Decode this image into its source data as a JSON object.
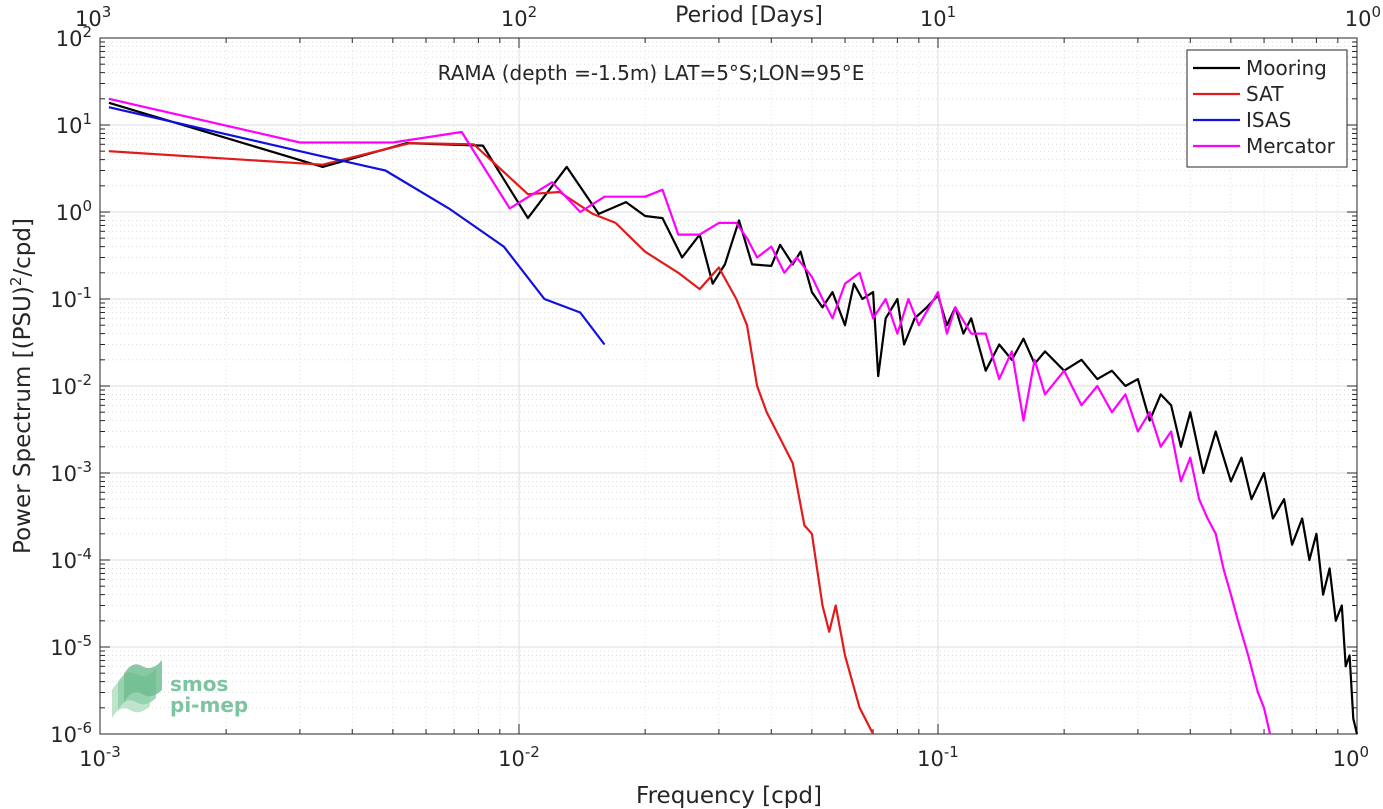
{
  "chart_data": {
    "type": "line",
    "title": "RAMA (depth =-1.5m) LAT=5°S;LON=95°E",
    "xlabel": "Frequency [cpd]",
    "ylabel": "Power Spectrum [(PSU)²/cpd]",
    "ylabel_base": "Power Spectrum [(PSU)",
    "ylabel_sup": "2",
    "ylabel_tail": "/cpd]",
    "top_xlabel": "Period [Days]",
    "x_scale": "log",
    "y_scale": "log",
    "xlim": [
      0.001,
      1
    ],
    "ylim": [
      1e-06,
      100
    ],
    "grid": true,
    "legend_position": "top-right",
    "x_ticks": [
      {
        "value": 0.001,
        "base": "10",
        "exp": "-3"
      },
      {
        "value": 0.01,
        "base": "10",
        "exp": "-2"
      },
      {
        "value": 0.1,
        "base": "10",
        "exp": "-1"
      },
      {
        "value": 1,
        "base": "10",
        "exp": "0"
      }
    ],
    "top_ticks": [
      {
        "value": 0.001,
        "base": "10",
        "exp": "3"
      },
      {
        "value": 0.01,
        "base": "10",
        "exp": "2"
      },
      {
        "value": 0.1,
        "base": "10",
        "exp": "1"
      },
      {
        "value": 1,
        "base": "10",
        "exp": "0"
      }
    ],
    "y_ticks": [
      {
        "value": 1e-06,
        "base": "10",
        "exp": "-6"
      },
      {
        "value": 1e-05,
        "base": "10",
        "exp": "-5"
      },
      {
        "value": 0.0001,
        "base": "10",
        "exp": "-4"
      },
      {
        "value": 0.001,
        "base": "10",
        "exp": "-3"
      },
      {
        "value": 0.01,
        "base": "10",
        "exp": "-2"
      },
      {
        "value": 0.1,
        "base": "10",
        "exp": "-1"
      },
      {
        "value": 1,
        "base": "10",
        "exp": "0"
      },
      {
        "value": 10,
        "base": "10",
        "exp": "1"
      },
      {
        "value": 100,
        "base": "10",
        "exp": "2"
      }
    ],
    "series": [
      {
        "name": "Mooring",
        "color": "#000000",
        "points": [
          [
            0.00105,
            18
          ],
          [
            0.0034,
            3.3
          ],
          [
            0.0054,
            6.2
          ],
          [
            0.0082,
            5.8
          ],
          [
            0.0105,
            0.85
          ],
          [
            0.013,
            3.3
          ],
          [
            0.0155,
            0.95
          ],
          [
            0.018,
            1.3
          ],
          [
            0.02,
            0.9
          ],
          [
            0.022,
            0.85
          ],
          [
            0.0245,
            0.3
          ],
          [
            0.027,
            0.55
          ],
          [
            0.029,
            0.15
          ],
          [
            0.031,
            0.25
          ],
          [
            0.0335,
            0.8
          ],
          [
            0.036,
            0.25
          ],
          [
            0.04,
            0.24
          ],
          [
            0.042,
            0.42
          ],
          [
            0.045,
            0.25
          ],
          [
            0.047,
            0.35
          ],
          [
            0.05,
            0.12
          ],
          [
            0.053,
            0.08
          ],
          [
            0.056,
            0.12
          ],
          [
            0.06,
            0.05
          ],
          [
            0.063,
            0.15
          ],
          [
            0.066,
            0.1
          ],
          [
            0.07,
            0.12
          ],
          [
            0.072,
            0.013
          ],
          [
            0.075,
            0.06
          ],
          [
            0.08,
            0.1
          ],
          [
            0.083,
            0.03
          ],
          [
            0.088,
            0.06
          ],
          [
            0.094,
            0.08
          ],
          [
            0.1,
            0.11
          ],
          [
            0.105,
            0.05
          ],
          [
            0.11,
            0.08
          ],
          [
            0.115,
            0.04
          ],
          [
            0.12,
            0.06
          ],
          [
            0.13,
            0.015
          ],
          [
            0.14,
            0.03
          ],
          [
            0.15,
            0.02
          ],
          [
            0.16,
            0.035
          ],
          [
            0.17,
            0.018
          ],
          [
            0.18,
            0.025
          ],
          [
            0.2,
            0.015
          ],
          [
            0.22,
            0.02
          ],
          [
            0.24,
            0.012
          ],
          [
            0.26,
            0.015
          ],
          [
            0.28,
            0.01
          ],
          [
            0.3,
            0.012
          ],
          [
            0.32,
            0.004
          ],
          [
            0.34,
            0.008
          ],
          [
            0.36,
            0.006
          ],
          [
            0.38,
            0.002
          ],
          [
            0.4,
            0.005
          ],
          [
            0.43,
            0.001
          ],
          [
            0.46,
            0.003
          ],
          [
            0.5,
            0.0008
          ],
          [
            0.53,
            0.0015
          ],
          [
            0.56,
            0.0005
          ],
          [
            0.6,
            0.001
          ],
          [
            0.63,
            0.0003
          ],
          [
            0.67,
            0.0005
          ],
          [
            0.7,
            0.00015
          ],
          [
            0.74,
            0.0003
          ],
          [
            0.77,
            0.0001
          ],
          [
            0.8,
            0.0002
          ],
          [
            0.83,
            4e-05
          ],
          [
            0.86,
            8e-05
          ],
          [
            0.89,
            2e-05
          ],
          [
            0.92,
            3e-05
          ],
          [
            0.94,
            6e-06
          ],
          [
            0.96,
            8e-06
          ],
          [
            0.98,
            1.5e-06
          ],
          [
            1.0,
            1e-06
          ]
        ]
      },
      {
        "name": "SAT",
        "color": "#e31a1c",
        "points": [
          [
            0.00105,
            5
          ],
          [
            0.0034,
            3.5
          ],
          [
            0.0055,
            6.2
          ],
          [
            0.0078,
            6
          ],
          [
            0.0105,
            1.6
          ],
          [
            0.0125,
            1.7
          ],
          [
            0.015,
            0.95
          ],
          [
            0.017,
            0.75
          ],
          [
            0.02,
            0.35
          ],
          [
            0.024,
            0.2
          ],
          [
            0.027,
            0.13
          ],
          [
            0.03,
            0.23
          ],
          [
            0.033,
            0.1
          ],
          [
            0.035,
            0.05
          ],
          [
            0.037,
            0.01
          ],
          [
            0.039,
            0.005
          ],
          [
            0.042,
            0.0025
          ],
          [
            0.045,
            0.0013
          ],
          [
            0.048,
            0.00025
          ],
          [
            0.05,
            0.0002
          ],
          [
            0.053,
            3e-05
          ],
          [
            0.055,
            1.5e-05
          ],
          [
            0.057,
            3e-05
          ],
          [
            0.06,
            8e-06
          ],
          [
            0.065,
            2e-06
          ],
          [
            0.07,
            1e-06
          ]
        ]
      },
      {
        "name": "ISAS",
        "color": "#1010e0",
        "points": [
          [
            0.00105,
            16
          ],
          [
            0.0033,
            4.5
          ],
          [
            0.0048,
            3
          ],
          [
            0.0068,
            1.1
          ],
          [
            0.0092,
            0.4
          ],
          [
            0.0115,
            0.1
          ],
          [
            0.014,
            0.07
          ],
          [
            0.016,
            0.03
          ]
        ]
      },
      {
        "name": "Mercator",
        "color": "#ff00ff",
        "points": [
          [
            0.00105,
            20
          ],
          [
            0.003,
            6.3
          ],
          [
            0.005,
            6.3
          ],
          [
            0.0073,
            8.3
          ],
          [
            0.0095,
            1.1
          ],
          [
            0.012,
            2.2
          ],
          [
            0.014,
            1.0
          ],
          [
            0.016,
            1.5
          ],
          [
            0.02,
            1.5
          ],
          [
            0.022,
            1.8
          ],
          [
            0.024,
            0.55
          ],
          [
            0.027,
            0.55
          ],
          [
            0.03,
            0.75
          ],
          [
            0.033,
            0.75
          ],
          [
            0.035,
            0.5
          ],
          [
            0.037,
            0.3
          ],
          [
            0.04,
            0.4
          ],
          [
            0.043,
            0.2
          ],
          [
            0.046,
            0.3
          ],
          [
            0.05,
            0.18
          ],
          [
            0.053,
            0.1
          ],
          [
            0.056,
            0.06
          ],
          [
            0.06,
            0.15
          ],
          [
            0.065,
            0.2
          ],
          [
            0.07,
            0.06
          ],
          [
            0.075,
            0.1
          ],
          [
            0.08,
            0.04
          ],
          [
            0.085,
            0.1
          ],
          [
            0.09,
            0.05
          ],
          [
            0.1,
            0.12
          ],
          [
            0.105,
            0.04
          ],
          [
            0.11,
            0.08
          ],
          [
            0.12,
            0.04
          ],
          [
            0.13,
            0.04
          ],
          [
            0.14,
            0.012
          ],
          [
            0.15,
            0.025
          ],
          [
            0.16,
            0.004
          ],
          [
            0.17,
            0.02
          ],
          [
            0.18,
            0.008
          ],
          [
            0.2,
            0.015
          ],
          [
            0.22,
            0.006
          ],
          [
            0.24,
            0.01
          ],
          [
            0.26,
            0.005
          ],
          [
            0.28,
            0.008
          ],
          [
            0.3,
            0.003
          ],
          [
            0.32,
            0.005
          ],
          [
            0.34,
            0.002
          ],
          [
            0.36,
            0.003
          ],
          [
            0.38,
            0.0008
          ],
          [
            0.4,
            0.0015
          ],
          [
            0.42,
            0.0005
          ],
          [
            0.44,
            0.0003
          ],
          [
            0.46,
            0.0002
          ],
          [
            0.48,
            8e-05
          ],
          [
            0.5,
            4e-05
          ],
          [
            0.52,
            2e-05
          ],
          [
            0.55,
            8e-06
          ],
          [
            0.58,
            3e-06
          ],
          [
            0.6,
            2e-06
          ],
          [
            0.62,
            1e-06
          ]
        ]
      }
    ]
  },
  "logo": {
    "line1": "smos",
    "line2": "pi-mep",
    "color": "#7fc4a0"
  }
}
